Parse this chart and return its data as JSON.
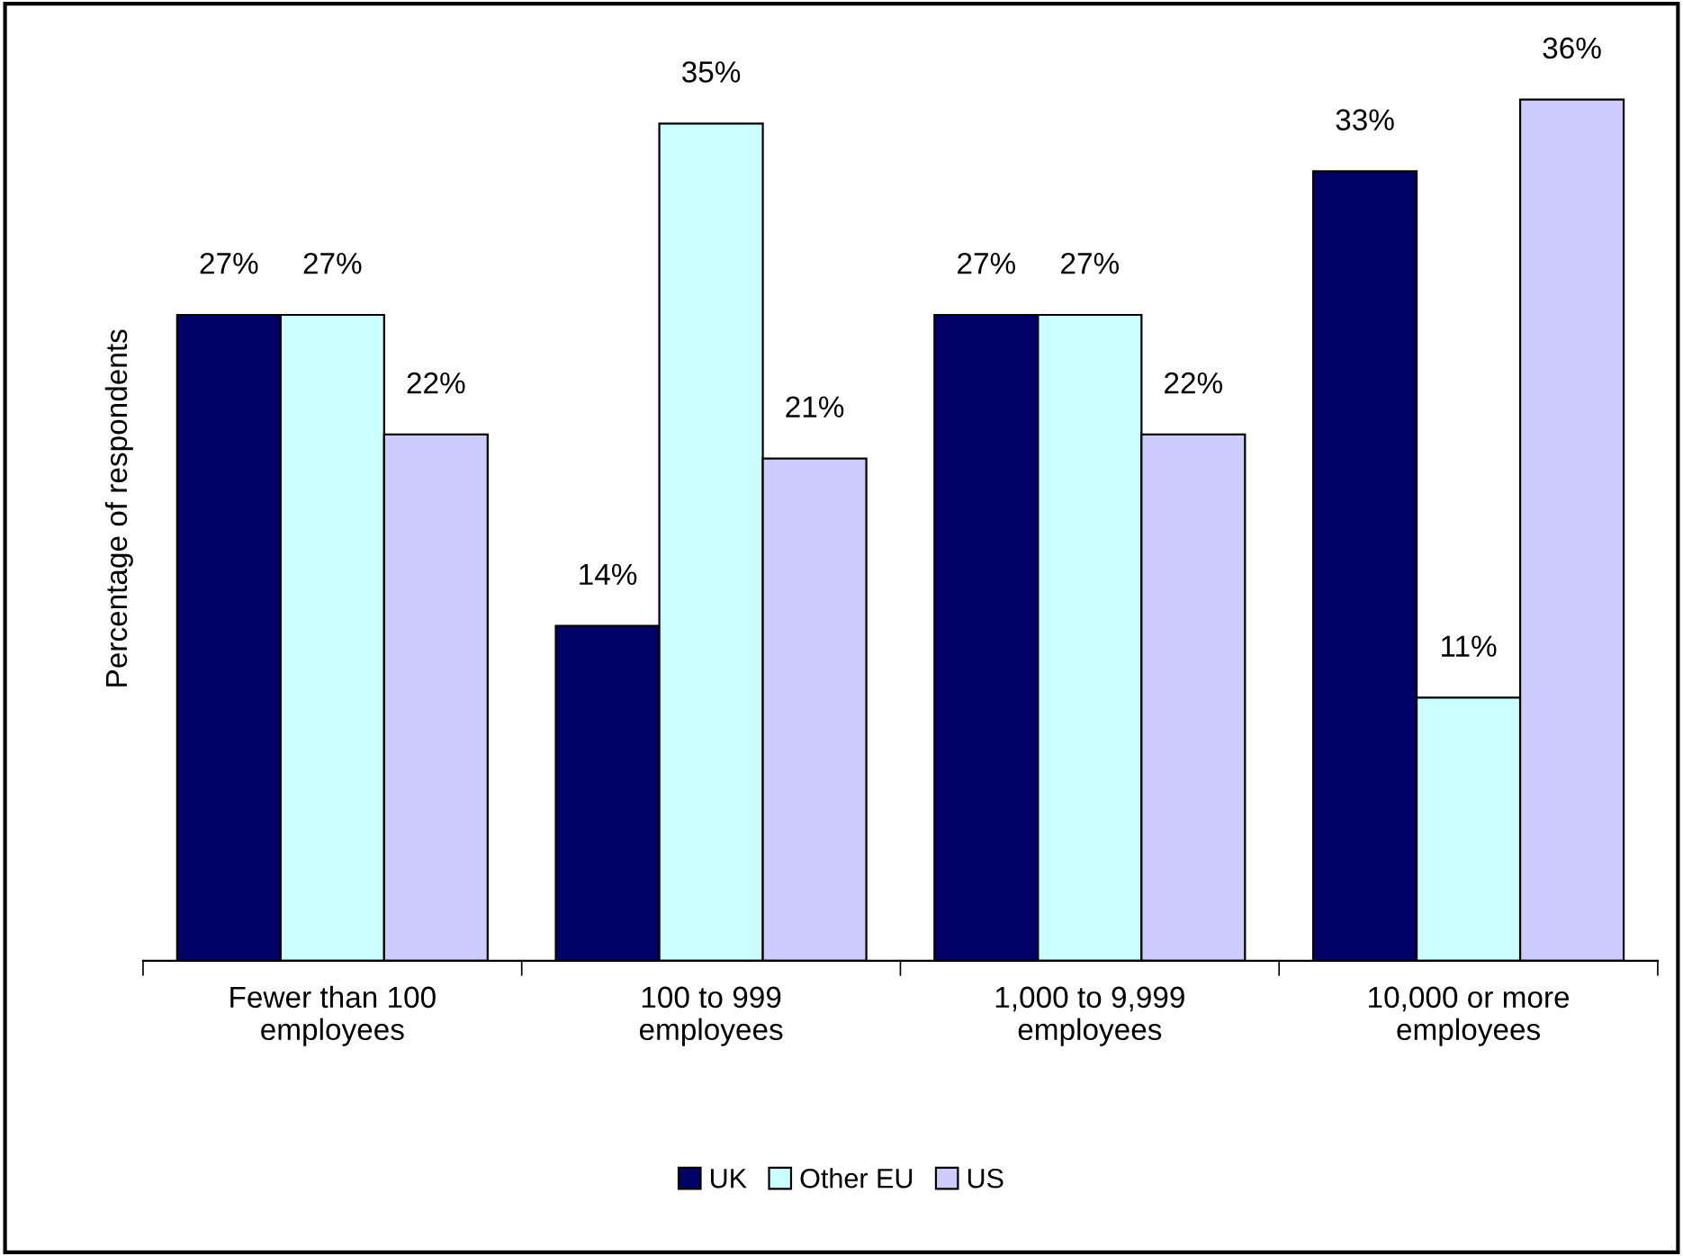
{
  "chart_data": {
    "type": "bar",
    "ylabel": "Percentage of respondents",
    "categories": [
      "Fewer than 100\nemployees",
      "100 to 999\nemployees",
      "1,000 to 9,999\nemployees",
      "10,000 or more\nemployees"
    ],
    "series": [
      {
        "name": "UK",
        "color": "#000066",
        "values": [
          27,
          14,
          27,
          33
        ],
        "value_labels": [
          "27%",
          "14%",
          "27%",
          "33%"
        ]
      },
      {
        "name": "Other EU",
        "color": "#ccffff",
        "values": [
          27,
          35,
          27,
          11
        ],
        "value_labels": [
          "27%",
          "35%",
          "27%",
          "11%"
        ]
      },
      {
        "name": "US",
        "color": "#ccccff",
        "values": [
          22,
          21,
          22,
          36
        ],
        "value_labels": [
          "22%",
          "21%",
          "22%",
          "36%"
        ]
      }
    ],
    "legend": "bottom",
    "grid": false
  }
}
